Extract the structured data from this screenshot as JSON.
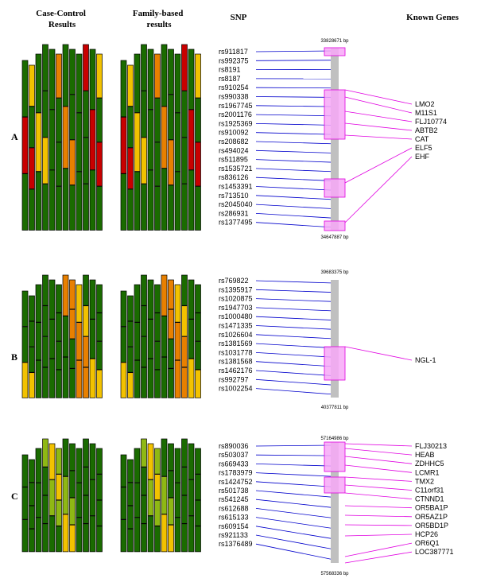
{
  "headers": {
    "case_control": "Case-Control\nResults",
    "family_based": "Family-based\nresults",
    "snp": "SNP",
    "known_genes": "Known Genes"
  },
  "colors": {
    "green": "#1a6b00",
    "light_green": "#8fb814",
    "yellow": "#f2c200",
    "orange": "#e88000",
    "red": "#c80000",
    "snp_line": "#0000cc",
    "gene_line": "#e000e0",
    "chromosome": "#c0c0c0"
  },
  "panels": [
    {
      "label": "A",
      "top_bp": "33828671 bp",
      "bottom_bp": "34647887 bp",
      "snps": [
        "rs911817",
        "rs992375",
        "rs8191",
        "rs8187",
        "rs910254",
        "rs990338",
        "rs1967745",
        "rs2001176",
        "rs1925369",
        "rs910092",
        "rs208682",
        "rs494024",
        "rs511895",
        "rs1535721",
        "rs836126",
        "rs1453391",
        "rs713510",
        "rs2045040",
        "rs286931",
        "rs1377495"
      ],
      "genes": [
        "LMO2",
        "M11S1",
        "FLJ10774",
        "ABTB2",
        "CAT",
        "ELF5",
        "EHF"
      ]
    },
    {
      "label": "B",
      "top_bp": "39683375 bp",
      "bottom_bp": "40377811 bp",
      "snps": [
        "rs769822",
        "rs1395917",
        "rs1020875",
        "rs1947703",
        "rs1000480",
        "rs1471335",
        "rs1026604",
        "rs1381569",
        "rs1031778",
        "rs1381568",
        "rs1462176",
        "rs992797",
        "rs1002254"
      ],
      "genes": [
        "NGL-1"
      ]
    },
    {
      "label": "C",
      "top_bp": "57164986 bp",
      "bottom_bp": "57568336 bp",
      "snps": [
        "rs890036",
        "rs503037",
        "rs669433",
        "rs1783979",
        "rs1424752",
        "rs501738",
        "rs541245",
        "rs612688",
        "rs615133",
        "rs609154",
        "rs921133",
        "rs1376489"
      ],
      "genes": [
        "FLJ30213",
        "HEAB",
        "ZDHHC5",
        "LCMR1",
        "TMX2",
        "C11orf31",
        "CTNND1",
        "OR5BA1P",
        "OR5AZ1P",
        "OR5BD1P",
        "HCP26",
        "OR6Q1",
        "LOC387771"
      ]
    }
  ]
}
